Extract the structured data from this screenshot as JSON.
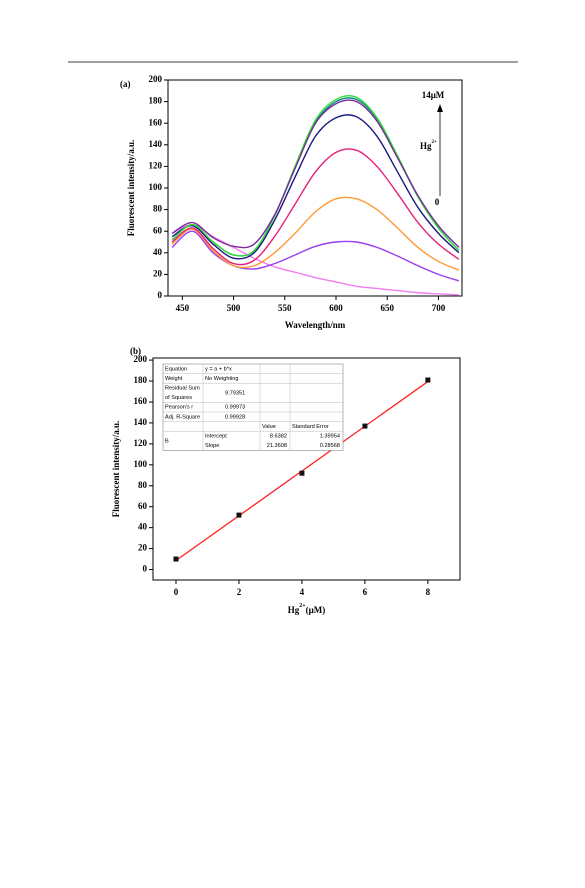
{
  "chart_data": [
    {
      "type": "line",
      "panel_label": "(a)",
      "xlabel": "Wavelength/nm",
      "ylabel": "Fluorescent intensity/a.u.",
      "x": [
        440,
        460,
        480,
        500,
        520,
        540,
        560,
        580,
        600,
        620,
        640,
        660,
        680,
        700,
        720
      ],
      "xlim": [
        436,
        723
      ],
      "xticks": [
        450,
        500,
        550,
        600,
        650,
        700
      ],
      "ylim": [
        0,
        200
      ],
      "yticks": [
        0,
        20,
        40,
        60,
        80,
        100,
        120,
        140,
        160,
        180,
        200
      ],
      "annotations": {
        "top": "14μM",
        "ion": "Hg",
        "charge": "2+",
        "bottom": "0"
      },
      "series": [
        {
          "color": "#f07ef0",
          "values": [
            58,
            66,
            55,
            45,
            35,
            27,
            22,
            17,
            13,
            9,
            7,
            5,
            3,
            2,
            1
          ]
        },
        {
          "color": "#9a3cf0",
          "values": [
            45,
            60,
            40,
            28,
            25,
            30,
            38,
            46,
            50,
            50,
            45,
            37,
            28,
            20,
            14
          ]
        },
        {
          "color": "#ff9933",
          "values": [
            48,
            62,
            42,
            28,
            28,
            40,
            58,
            78,
            90,
            90,
            80,
            63,
            45,
            32,
            24
          ]
        },
        {
          "color": "#e6207a",
          "values": [
            50,
            63,
            44,
            30,
            33,
            55,
            85,
            115,
            133,
            135,
            120,
            95,
            68,
            48,
            34
          ]
        },
        {
          "color": "#1a1a80",
          "values": [
            55,
            65,
            48,
            35,
            40,
            70,
            110,
            148,
            165,
            166,
            148,
            115,
            82,
            58,
            40
          ]
        },
        {
          "color": "#0a8a8a",
          "values": [
            52,
            66,
            50,
            38,
            42,
            74,
            119,
            161,
            180,
            182,
            164,
            129,
            92,
            63,
            42
          ]
        },
        {
          "color": "#33dd33",
          "values": [
            52,
            66,
            50,
            38,
            42,
            74,
            120,
            163,
            182,
            184,
            165,
            130,
            92,
            63,
            42
          ]
        },
        {
          "color": "#7a2a9a",
          "values": [
            58,
            68,
            54,
            46,
            48,
            75,
            118,
            160,
            178,
            180,
            162,
            128,
            93,
            65,
            45
          ]
        }
      ]
    },
    {
      "type": "scatter",
      "panel_label": "(b)",
      "xlabel": [
        "Hg",
        "2+",
        "(μM)"
      ],
      "ylabel": "Fluorescent intensity/a.u.",
      "x": [
        0,
        2,
        4,
        6,
        8
      ],
      "values": [
        10,
        52,
        92,
        137,
        181
      ],
      "color": "#111111",
      "fit": {
        "color": "#ff2020",
        "x": [
          0,
          8
        ],
        "values": [
          8.64,
          179.52
        ]
      },
      "xlim": [
        -0.73,
        9.02
      ],
      "xticks": [
        0,
        2,
        4,
        6,
        8
      ],
      "ylim": [
        -10,
        202
      ],
      "yticks": [
        0,
        20,
        40,
        60,
        80,
        100,
        120,
        140,
        160,
        180,
        200
      ],
      "table": {
        "rows": [
          [
            "Equation",
            "y = a + b*x",
            null,
            null
          ],
          [
            "Weight",
            "No Weighting",
            null,
            null
          ],
          [
            [
              "Residual Sum",
              "of Squares"
            ],
            "9.79351",
            null,
            null
          ],
          [
            "Pearson's r",
            "0.99973",
            null,
            null
          ],
          [
            "Adj. R-Square",
            "0.99928",
            null,
            null
          ],
          [
            null,
            null,
            "Value",
            "Standard Error"
          ],
          [
            "B",
            "Intercept",
            "8.6382",
            "1.39954"
          ],
          [
            null,
            "Slope",
            "21.3608",
            "0.28568"
          ]
        ]
      }
    }
  ]
}
